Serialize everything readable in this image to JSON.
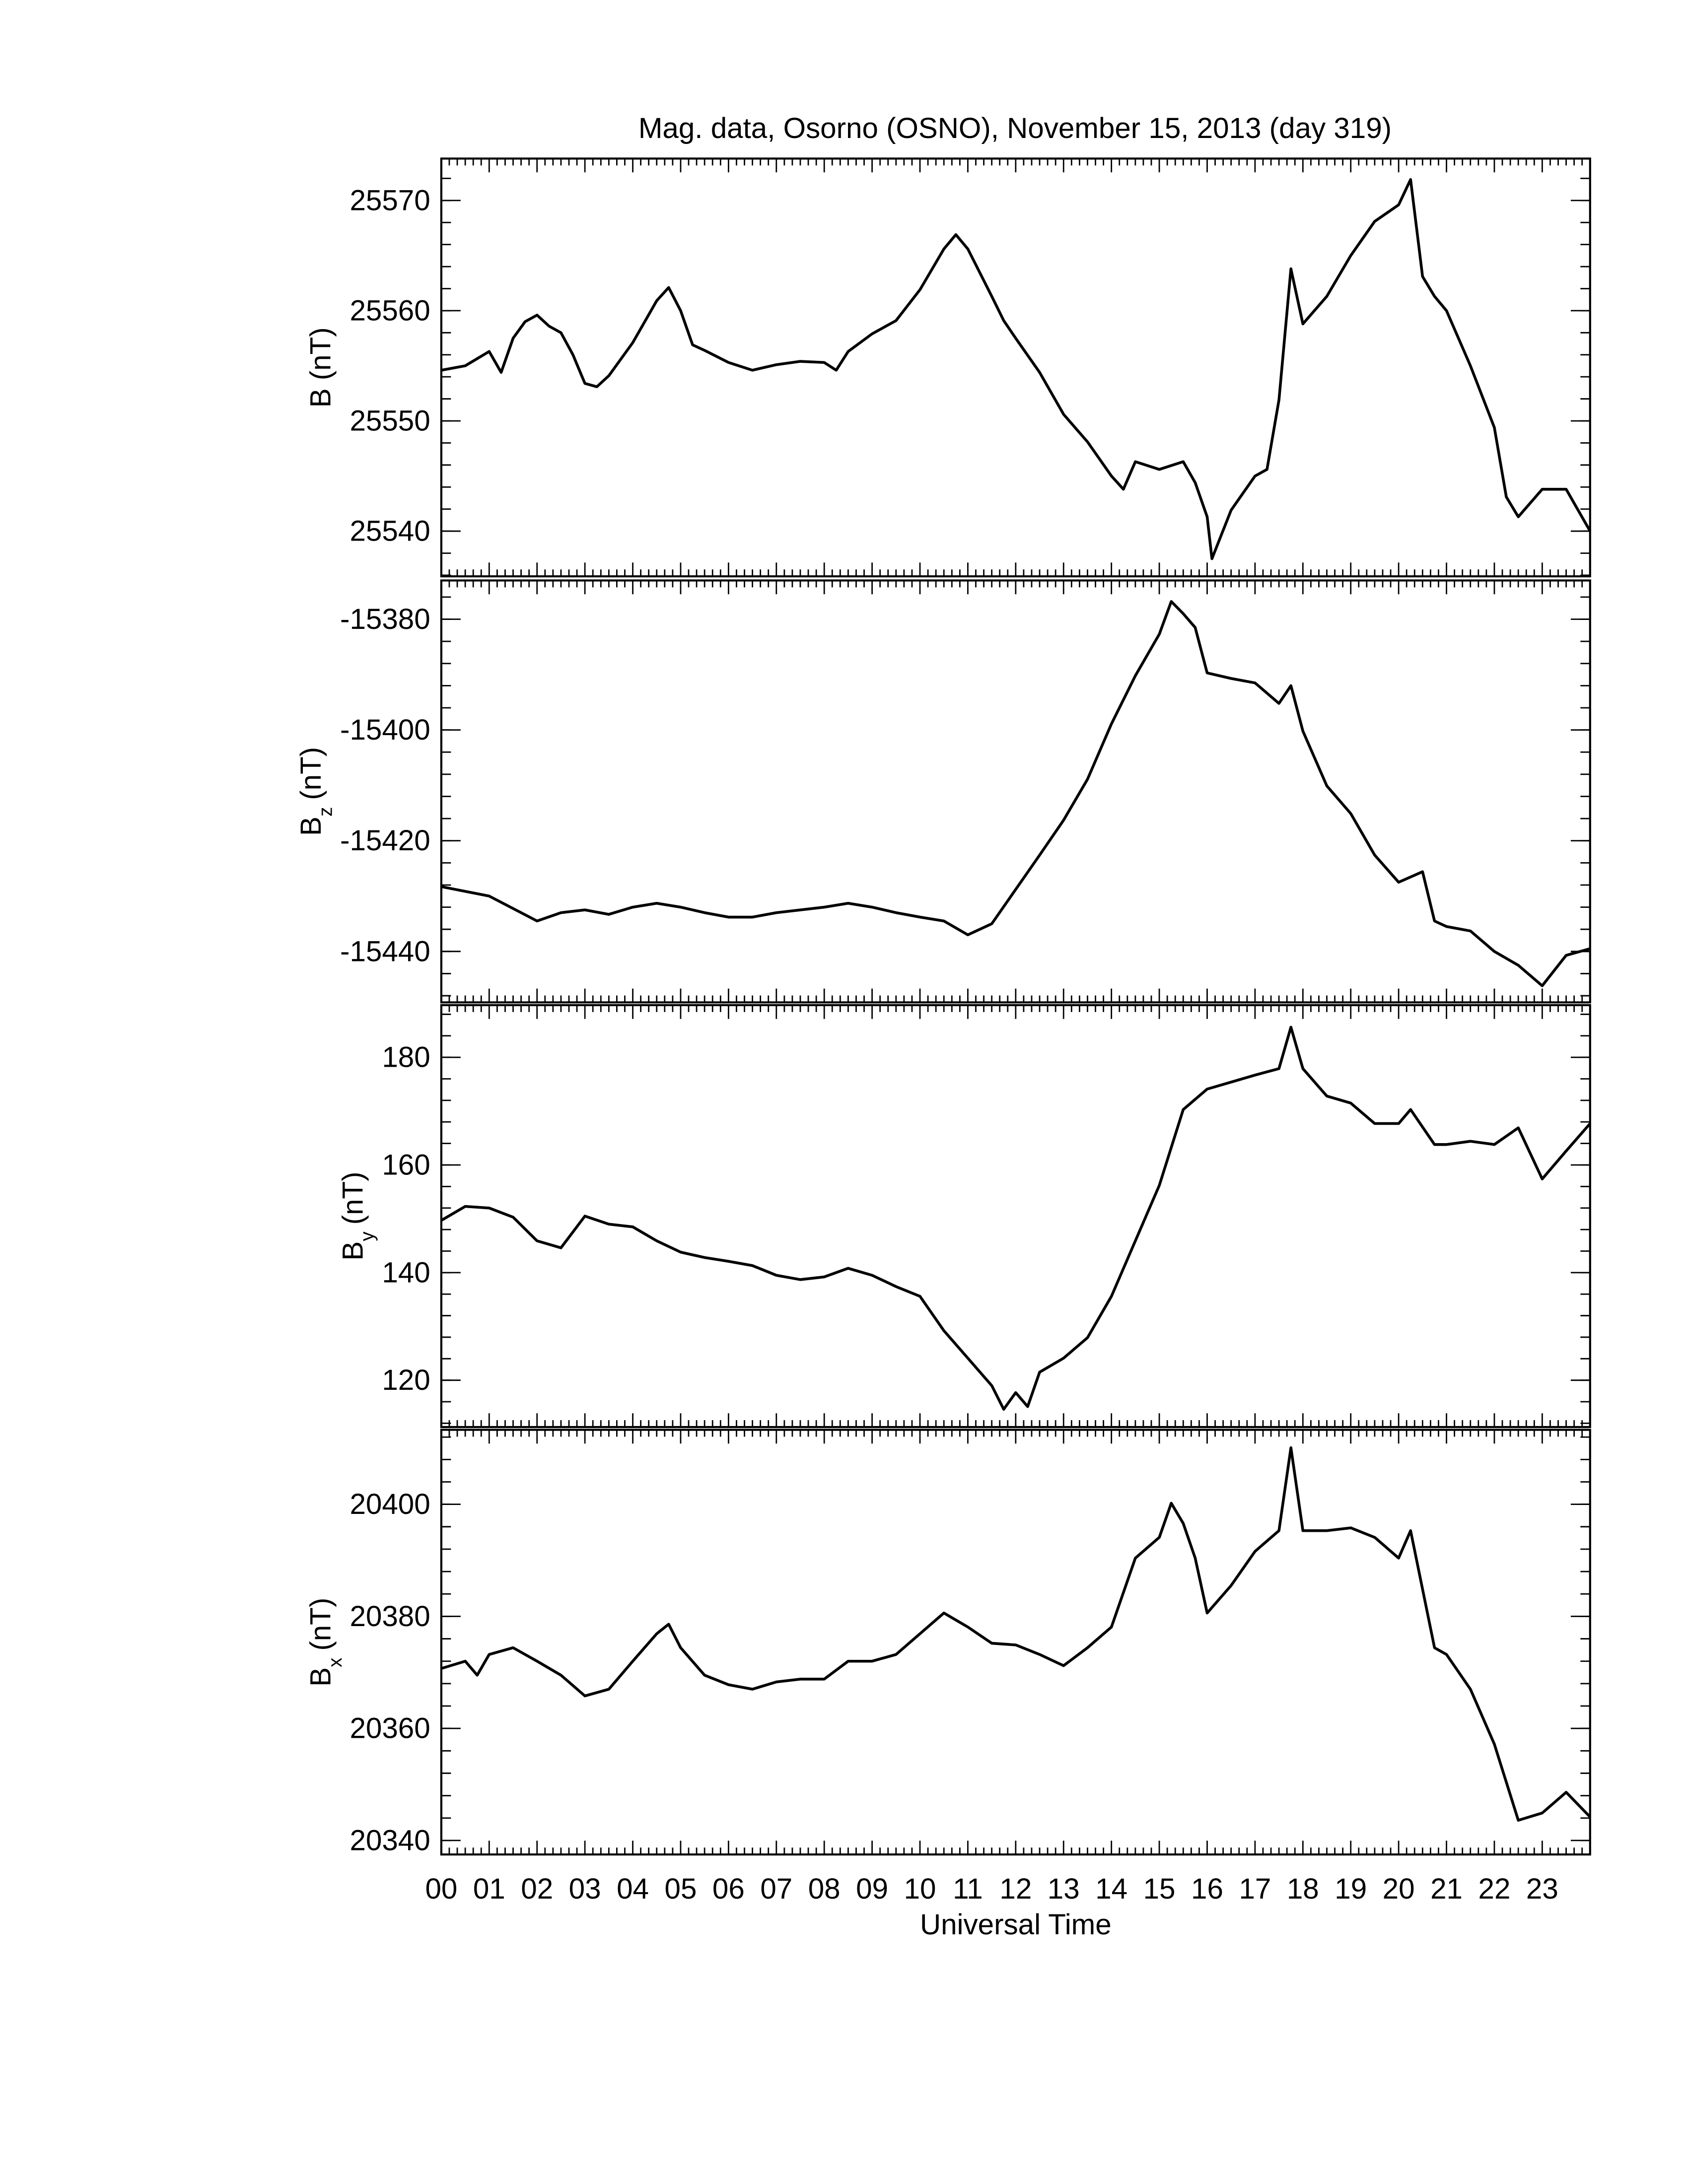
{
  "chart_data": [
    {
      "type": "line",
      "title": "Mag. data, Osorno (OSNO), November 15, 2013 (day 319)",
      "ylabel_parts": [
        "B (nT)"
      ],
      "x": [
        0,
        0.5,
        1,
        1.25,
        1.5,
        1.75,
        2,
        2.25,
        2.5,
        2.75,
        3,
        3.25,
        3.5,
        4,
        4.5,
        4.75,
        5,
        5.25,
        5.5,
        6,
        6.5,
        7,
        7.5,
        8,
        8.25,
        8.5,
        9,
        9.5,
        10,
        10.5,
        10.75,
        11,
        11.5,
        11.75,
        12,
        12.5,
        13,
        13.5,
        14,
        14.25,
        14.5,
        15,
        15.5,
        15.75,
        16,
        16.1,
        16.5,
        17,
        17.25,
        17.5,
        17.75,
        18,
        18.5,
        19,
        19.5,
        20,
        20.25,
        20.5,
        20.75,
        21,
        21.5,
        22,
        22.25,
        22.5,
        23,
        23.5,
        24
      ],
      "values": [
        25554.6,
        25555,
        25556.3,
        25554.4,
        25557.5,
        25559,
        25559.6,
        25558.6,
        25558,
        25556,
        25553.4,
        25553.1,
        25554.1,
        25557.1,
        25560.9,
        25562.1,
        25560,
        25556.9,
        25556.4,
        25555.3,
        25554.6,
        25555.1,
        25555.4,
        25555.3,
        25554.6,
        25556.3,
        25557.9,
        25559.1,
        25561.9,
        25565.6,
        25566.9,
        25565.6,
        25561.3,
        25559.1,
        25557.5,
        25554.4,
        25550.6,
        25548.1,
        25545,
        25543.8,
        25546.3,
        25545.6,
        25546.3,
        25544.4,
        25541.3,
        25537.5,
        25541.9,
        25545,
        25545.6,
        25551.9,
        25563.8,
        25558.8,
        25561.3,
        25565,
        25568.1,
        25569.6,
        25571.9,
        25563.1,
        25561.3,
        25560,
        25555,
        25549.4,
        25543.1,
        25541.3,
        25543.8,
        25543.8,
        25540
      ],
      "color": "#000000",
      "xlim": [
        0,
        24
      ],
      "ylim": [
        25535.9,
        25573.8
      ],
      "xticks": [
        {
          "value": 0,
          "label": "00"
        },
        {
          "value": 1,
          "label": "01"
        },
        {
          "value": 2,
          "label": "02"
        },
        {
          "value": 3,
          "label": "03"
        },
        {
          "value": 4,
          "label": "04"
        },
        {
          "value": 5,
          "label": "05"
        },
        {
          "value": 6,
          "label": "06"
        },
        {
          "value": 7,
          "label": "07"
        },
        {
          "value": 8,
          "label": "08"
        },
        {
          "value": 9,
          "label": "09"
        },
        10,
        11,
        12,
        13,
        14,
        15,
        16,
        17,
        18,
        19,
        20,
        21,
        22,
        23
      ],
      "yticks": [
        25540,
        25550,
        25560,
        25570
      ]
    },
    {
      "type": "line",
      "ylabel_parts": [
        "B",
        "z",
        "(nT)"
      ],
      "x": [
        0,
        1,
        2,
        2.5,
        3,
        3.5,
        4,
        4.5,
        5,
        5.5,
        6,
        6.5,
        7,
        8,
        8.5,
        9,
        9.5,
        10,
        10.5,
        11,
        11.5,
        12,
        12.5,
        13,
        13.5,
        14,
        14.5,
        15,
        15.25,
        15.5,
        15.75,
        16,
        16.5,
        17,
        17.5,
        17.75,
        18,
        18.5,
        19,
        19.5,
        20,
        20.5,
        20.75,
        21,
        21.5,
        22,
        22.5,
        23,
        23.5,
        24
      ],
      "values": [
        -15428.3,
        -15430,
        -15434.5,
        -15433,
        -15432.5,
        -15433.3,
        -15432,
        -15431.3,
        -15432,
        -15433,
        -15433.8,
        -15433.8,
        -15433,
        -15432,
        -15431.3,
        -15432,
        -15433,
        -15433.8,
        -15434.5,
        -15437,
        -15435,
        -15428.8,
        -15422.6,
        -15416.3,
        -15408.9,
        -15398.9,
        -15390.2,
        -15382.7,
        -15376.8,
        -15379,
        -15381.5,
        -15389.7,
        -15390.7,
        -15391.5,
        -15395.2,
        -15392,
        -15400.2,
        -15410.1,
        -15415.1,
        -15422.6,
        -15427.5,
        -15425.6,
        -15434.5,
        -15435.5,
        -15436.3,
        -15440,
        -15442.5,
        -15446.2,
        -15440.7,
        -15439.5
      ],
      "color": "#000000",
      "xlim": [
        0,
        24
      ],
      "ylim": [
        -15449.2,
        -15373.0
      ],
      "yticks": [
        -15440,
        -15420,
        -15400,
        -15380
      ]
    },
    {
      "type": "line",
      "ylabel_parts": [
        "B",
        "y",
        "(nT)"
      ],
      "x": [
        0,
        0.5,
        1,
        1.5,
        2,
        2.5,
        3,
        3.5,
        4,
        4.5,
        5,
        5.5,
        6,
        6.5,
        7,
        7.5,
        8,
        8.5,
        9,
        9.5,
        10,
        10.5,
        11,
        11.5,
        11.75,
        12,
        12.25,
        12.5,
        13,
        13.5,
        14,
        14.5,
        15,
        15.5,
        16,
        16.5,
        17,
        17.5,
        17.75,
        18,
        18.5,
        19,
        19.5,
        20,
        20.25,
        20.75,
        21,
        21.5,
        22,
        22.5,
        23,
        23.5,
        24
      ],
      "values": [
        149.7,
        152.3,
        152,
        150.3,
        145.9,
        144.6,
        150.5,
        149,
        148.5,
        145.9,
        143.8,
        142.8,
        142.1,
        141.3,
        139.5,
        138.7,
        139.2,
        140.8,
        139.5,
        137.4,
        135.6,
        129.2,
        124.1,
        119,
        114.6,
        117.7,
        115.1,
        121.5,
        124.1,
        127.9,
        135.6,
        145.9,
        156.2,
        170.3,
        174.1,
        175.4,
        176.7,
        177.9,
        185.6,
        177.9,
        172.8,
        171.5,
        167.7,
        167.7,
        170.3,
        163.8,
        163.8,
        164.4,
        163.8,
        166.9,
        157.4,
        162.6,
        167.7
      ],
      "color": "#000000",
      "xlim": [
        0,
        24
      ],
      "ylim": [
        111.3,
        189.7
      ],
      "yticks": [
        120,
        140,
        160,
        180
      ]
    },
    {
      "type": "line",
      "ylabel_parts": [
        "B",
        "x",
        "(nT)"
      ],
      "xlabel": "Universal Time",
      "x": [
        0,
        0.5,
        0.75,
        1,
        1.5,
        2,
        2.5,
        3,
        3.5,
        4,
        4.5,
        4.75,
        5,
        5.5,
        6,
        6.5,
        7,
        7.5,
        8,
        8.5,
        9,
        9.5,
        10,
        10.5,
        11,
        11.5,
        12,
        12.5,
        13,
        13.5,
        14,
        14.5,
        15,
        15.25,
        15.5,
        15.75,
        16,
        16.5,
        17,
        17.5,
        17.75,
        18,
        18.5,
        19,
        19.5,
        20,
        20.25,
        20.75,
        21,
        21.5,
        22,
        22.5,
        23,
        23.5,
        24
      ],
      "values": [
        20370.7,
        20372,
        20369.5,
        20373.2,
        20374.4,
        20372,
        20369.5,
        20365.8,
        20367,
        20372,
        20376.9,
        20378.6,
        20374.4,
        20369.5,
        20367.8,
        20367,
        20368.3,
        20368.8,
        20368.8,
        20372,
        20372,
        20373.2,
        20376.9,
        20380.6,
        20378.1,
        20375.2,
        20374.9,
        20373.2,
        20371.2,
        20374.4,
        20378.1,
        20390.4,
        20394.1,
        20400.2,
        20396.6,
        20390.4,
        20380.6,
        20385.5,
        20391.6,
        20395.3,
        20410.1,
        20395.3,
        20395.3,
        20395.8,
        20394.1,
        20390.4,
        20395.3,
        20374.4,
        20373.2,
        20367,
        20357.2,
        20343.6,
        20344.9,
        20348.6,
        20344.2
      ],
      "color": "#000000",
      "xlim": [
        0,
        24
      ],
      "ylim": [
        20337.5,
        20413.3
      ],
      "yticks": [
        20340,
        20360,
        20380,
        20400
      ]
    }
  ]
}
